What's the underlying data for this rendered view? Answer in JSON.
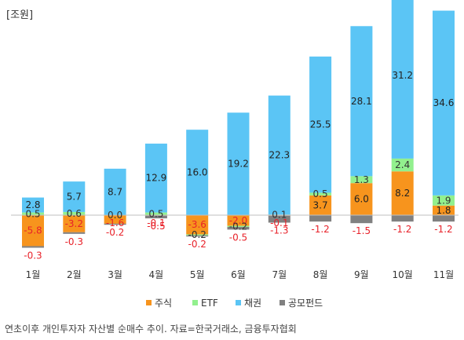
{
  "unit_label": "[조원]",
  "caption": "연초이후 개인투자자 자산별 순매수 추이. 자료=한국거래소, 금융투자협회",
  "chart_data": {
    "type": "bar",
    "title": "",
    "xlabel": "",
    "ylabel": "",
    "stacked": true,
    "categories": [
      "1월",
      "2월",
      "3월",
      "4월",
      "5월",
      "6월",
      "7월",
      "8월",
      "9월",
      "10월",
      "11월"
    ],
    "series": [
      {
        "name": "주식",
        "color": "#f7941d",
        "values": [
          -5.8,
          -3.2,
          -1.6,
          -0.1,
          -3.6,
          -2.0,
          -0.1,
          3.7,
          6.0,
          8.2,
          1.8
        ]
      },
      {
        "name": "ETF",
        "color": "#92f08e",
        "values": [
          0.5,
          0.6,
          0.0,
          0.5,
          -0.2,
          -0.2,
          0.1,
          0.5,
          1.3,
          2.4,
          1.9
        ]
      },
      {
        "name": "채권",
        "color": "#5bc5f5",
        "values": [
          2.8,
          5.7,
          8.7,
          12.9,
          16.0,
          19.2,
          22.3,
          25.5,
          28.1,
          31.2,
          34.6
        ]
      },
      {
        "name": "공모펀드",
        "color": "#808080",
        "values": [
          -0.3,
          -0.3,
          -0.2,
          -0.5,
          -0.2,
          -0.5,
          -1.3,
          -1.2,
          -1.5,
          -1.2,
          -1.2
        ]
      }
    ],
    "ylim": [
      -8,
      46
    ],
    "legend_position": "bottom",
    "grid": false
  }
}
